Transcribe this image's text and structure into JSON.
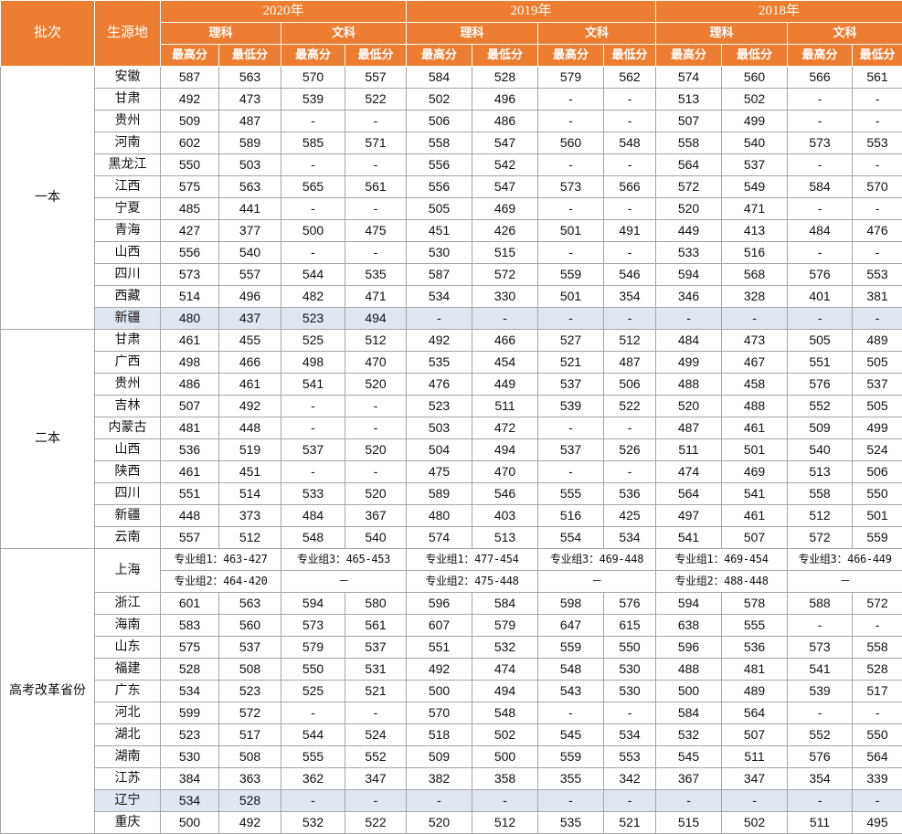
{
  "header": {
    "batch": "批次",
    "province": "生源地",
    "years": [
      "2020年",
      "2019年",
      "2018年"
    ],
    "streams": [
      "理科",
      "文科"
    ],
    "metrics": [
      "最高分",
      "最低分"
    ]
  },
  "groups": [
    {
      "batch": "一本",
      "rows": [
        {
          "province": "安徽",
          "v": [
            "587",
            "563",
            "570",
            "557",
            "584",
            "528",
            "579",
            "562",
            "574",
            "560",
            "566",
            "561"
          ]
        },
        {
          "province": "甘肃",
          "v": [
            "492",
            "473",
            "539",
            "522",
            "502",
            "496",
            "-",
            "-",
            "513",
            "502",
            "-",
            "-"
          ]
        },
        {
          "province": "贵州",
          "v": [
            "509",
            "487",
            "-",
            "-",
            "506",
            "486",
            "-",
            "-",
            "507",
            "499",
            "-",
            "-"
          ]
        },
        {
          "province": "河南",
          "v": [
            "602",
            "589",
            "585",
            "571",
            "558",
            "547",
            "560",
            "548",
            "558",
            "540",
            "573",
            "553"
          ]
        },
        {
          "province": "黑龙江",
          "v": [
            "550",
            "503",
            "-",
            "-",
            "556",
            "542",
            "-",
            "-",
            "564",
            "537",
            "-",
            "-"
          ]
        },
        {
          "province": "江西",
          "v": [
            "575",
            "563",
            "565",
            "561",
            "556",
            "547",
            "573",
            "566",
            "572",
            "549",
            "584",
            "570"
          ]
        },
        {
          "province": "宁夏",
          "v": [
            "485",
            "441",
            "-",
            "-",
            "505",
            "469",
            "-",
            "-",
            "520",
            "471",
            "-",
            "-"
          ]
        },
        {
          "province": "青海",
          "v": [
            "427",
            "377",
            "500",
            "475",
            "451",
            "426",
            "501",
            "491",
            "449",
            "413",
            "484",
            "476"
          ]
        },
        {
          "province": "山西",
          "v": [
            "556",
            "540",
            "-",
            "-",
            "530",
            "515",
            "-",
            "-",
            "533",
            "516",
            "-",
            "-"
          ]
        },
        {
          "province": "四川",
          "v": [
            "573",
            "557",
            "544",
            "535",
            "587",
            "572",
            "559",
            "546",
            "594",
            "568",
            "576",
            "553"
          ]
        },
        {
          "province": "西藏",
          "v": [
            "514",
            "496",
            "482",
            "471",
            "534",
            "330",
            "501",
            "354",
            "346",
            "328",
            "401",
            "381"
          ]
        },
        {
          "province": "新疆",
          "v": [
            "480",
            "437",
            "523",
            "494",
            "-",
            "-",
            "-",
            "-",
            "-",
            "-",
            "-",
            "-"
          ],
          "shade": true
        }
      ]
    },
    {
      "batch": "二本",
      "rows": [
        {
          "province": "甘肃",
          "v": [
            "461",
            "455",
            "525",
            "512",
            "492",
            "466",
            "527",
            "512",
            "484",
            "473",
            "505",
            "489"
          ]
        },
        {
          "province": "广西",
          "v": [
            "498",
            "466",
            "498",
            "470",
            "535",
            "454",
            "521",
            "487",
            "499",
            "467",
            "551",
            "505"
          ]
        },
        {
          "province": "贵州",
          "v": [
            "486",
            "461",
            "541",
            "520",
            "476",
            "449",
            "537",
            "506",
            "488",
            "458",
            "576",
            "537"
          ]
        },
        {
          "province": "吉林",
          "v": [
            "507",
            "492",
            "-",
            "-",
            "523",
            "511",
            "539",
            "522",
            "520",
            "488",
            "552",
            "505"
          ]
        },
        {
          "province": "内蒙古",
          "v": [
            "481",
            "448",
            "-",
            "-",
            "503",
            "472",
            "-",
            "-",
            "487",
            "461",
            "509",
            "499"
          ]
        },
        {
          "province": "山西",
          "v": [
            "536",
            "519",
            "537",
            "520",
            "504",
            "494",
            "537",
            "526",
            "511",
            "501",
            "540",
            "524"
          ]
        },
        {
          "province": "陕西",
          "v": [
            "461",
            "451",
            "-",
            "-",
            "475",
            "470",
            "-",
            "-",
            "474",
            "469",
            "513",
            "506"
          ]
        },
        {
          "province": "四川",
          "v": [
            "551",
            "514",
            "533",
            "520",
            "589",
            "546",
            "555",
            "536",
            "564",
            "541",
            "558",
            "550"
          ]
        },
        {
          "province": "新疆",
          "v": [
            "448",
            "373",
            "484",
            "367",
            "480",
            "403",
            "516",
            "425",
            "497",
            "461",
            "512",
            "501"
          ]
        },
        {
          "province": "云南",
          "v": [
            "557",
            "512",
            "548",
            "540",
            "574",
            "513",
            "554",
            "534",
            "541",
            "507",
            "572",
            "559"
          ]
        }
      ]
    },
    {
      "batch": "高考改革省份",
      "shanghai": {
        "province": "上海",
        "row1": [
          "专业组1：463-427",
          "专业组3：465-453",
          "专业组1：477-454",
          "专业组3：469-448",
          "专业组1：469-454",
          "专业组3：466-449"
        ],
        "row2": [
          "专业组2：464-420",
          "－",
          "专业组2：475-448",
          "－",
          "专业组2：488-448",
          "－"
        ]
      },
      "rows": [
        {
          "province": "浙江",
          "v": [
            "601",
            "563",
            "594",
            "580",
            "596",
            "584",
            "598",
            "576",
            "594",
            "578",
            "588",
            "572"
          ]
        },
        {
          "province": "海南",
          "v": [
            "583",
            "560",
            "573",
            "561",
            "607",
            "579",
            "647",
            "615",
            "638",
            "555",
            "-",
            "-"
          ]
        },
        {
          "province": "山东",
          "v": [
            "575",
            "537",
            "579",
            "537",
            "551",
            "532",
            "559",
            "550",
            "596",
            "536",
            "573",
            "558"
          ]
        },
        {
          "province": "福建",
          "v": [
            "528",
            "508",
            "550",
            "531",
            "492",
            "474",
            "548",
            "530",
            "488",
            "481",
            "541",
            "528"
          ]
        },
        {
          "province": "广东",
          "v": [
            "534",
            "523",
            "525",
            "521",
            "500",
            "494",
            "543",
            "530",
            "500",
            "489",
            "539",
            "517"
          ]
        },
        {
          "province": "河北",
          "v": [
            "599",
            "572",
            "-",
            "-",
            "570",
            "548",
            "-",
            "-",
            "584",
            "564",
            "-",
            "-"
          ]
        },
        {
          "province": "湖北",
          "v": [
            "523",
            "517",
            "544",
            "524",
            "518",
            "502",
            "545",
            "534",
            "532",
            "507",
            "552",
            "550"
          ]
        },
        {
          "province": "湖南",
          "v": [
            "530",
            "508",
            "555",
            "552",
            "509",
            "500",
            "559",
            "553",
            "545",
            "511",
            "576",
            "564"
          ]
        },
        {
          "province": "江苏",
          "v": [
            "384",
            "363",
            "362",
            "347",
            "382",
            "358",
            "355",
            "342",
            "367",
            "347",
            "354",
            "339"
          ]
        },
        {
          "province": "辽宁",
          "v": [
            "534",
            "528",
            "-",
            "-",
            "-",
            "-",
            "-",
            "-",
            "-",
            "-",
            "-",
            "-"
          ],
          "shade": true
        },
        {
          "province": "重庆",
          "v": [
            "500",
            "492",
            "532",
            "522",
            "520",
            "512",
            "535",
            "521",
            "515",
            "502",
            "511",
            "495"
          ]
        }
      ]
    }
  ]
}
